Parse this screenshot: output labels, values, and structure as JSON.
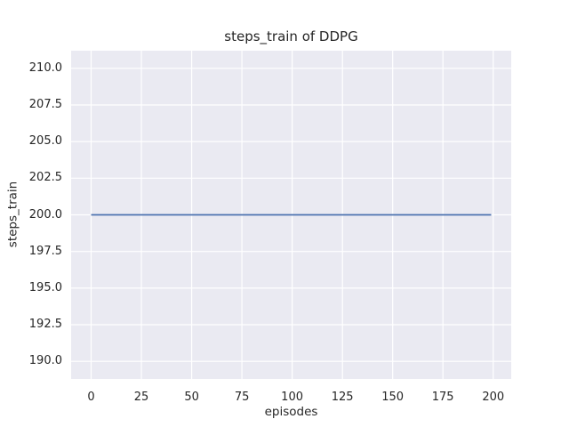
{
  "chart_data": {
    "type": "line",
    "title": "steps_train of DDPG",
    "xlabel": "episodes",
    "ylabel": "steps_train",
    "xlim": [
      -9.95,
      208.95
    ],
    "ylim": [
      188.8,
      211.2
    ],
    "xticks": {
      "values": [
        0,
        25,
        50,
        75,
        100,
        125,
        150,
        175,
        200
      ],
      "labels": [
        "0",
        "25",
        "50",
        "75",
        "100",
        "125",
        "150",
        "175",
        "200"
      ]
    },
    "yticks": {
      "values": [
        190.0,
        192.5,
        195.0,
        197.5,
        200.0,
        202.5,
        205.0,
        207.5,
        210.0
      ],
      "labels": [
        "190.0",
        "192.5",
        "195.0",
        "197.5",
        "200.0",
        "202.5",
        "205.0",
        "207.5",
        "210.0"
      ]
    },
    "grid": true,
    "legend": "none",
    "series": [
      {
        "name": "steps_train",
        "x": [
          0,
          199
        ],
        "y": [
          200,
          200
        ],
        "color": "#4c72b0",
        "note": "constant line: steps_train = 200 for every episode from 0 to 199"
      }
    ],
    "colors": {
      "figure_background": "#ffffff",
      "plot_background": "#eaeaf2",
      "gridline": "#ffffff",
      "text": "#262626",
      "line": "#4c72b0"
    }
  }
}
